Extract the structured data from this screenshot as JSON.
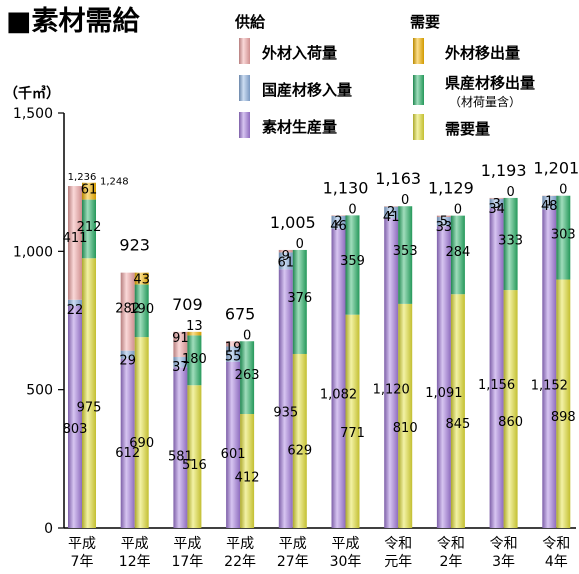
{
  "chart_data": {
    "type": "bar",
    "title": "■素材需給",
    "unit": "（千㎥）",
    "yticks": [
      "0",
      "500",
      "1,000",
      "1,500"
    ],
    "ylim": [
      0,
      1500
    ],
    "categories": [
      [
        "平成",
        "7年"
      ],
      [
        "平成",
        "12年"
      ],
      [
        "平成",
        "17年"
      ],
      [
        "平成",
        "22年"
      ],
      [
        "平成",
        "27年"
      ],
      [
        "平成",
        "30年"
      ],
      [
        "令和",
        "元年"
      ],
      [
        "令和",
        "2年"
      ],
      [
        "令和",
        "3年"
      ],
      [
        "令和",
        "4年"
      ]
    ],
    "legend": {
      "supply_title": "供給",
      "demand_title": "需要",
      "supply": [
        {
          "key": "import",
          "label": "外材入荷量"
        },
        {
          "key": "transfer_in",
          "label": "国産材移入量"
        },
        {
          "key": "production",
          "label": "素材生産量"
        }
      ],
      "demand": [
        {
          "key": "export",
          "label": "外材移出量"
        },
        {
          "key": "transfer_out",
          "label": "県産材移出量",
          "note": "（材荷量含）"
        },
        {
          "key": "demand",
          "label": "需要量"
        }
      ]
    },
    "supply": {
      "production": [
        803,
        612,
        581,
        601,
        935,
        1082,
        1120,
        1091,
        1156,
        1152
      ],
      "transfer_in": [
        22,
        29,
        37,
        55,
        61,
        46,
        41,
        33,
        34,
        48
      ],
      "import": [
        411,
        282,
        91,
        19,
        9,
        2,
        2,
        5,
        3,
        1
      ]
    },
    "demand": {
      "demand": [
        975,
        690,
        516,
        412,
        629,
        771,
        810,
        845,
        860,
        898
      ],
      "transfer_out": [
        212,
        190,
        180,
        263,
        376,
        359,
        353,
        284,
        333,
        303
      ],
      "export": [
        61,
        43,
        13,
        0,
        0,
        0,
        0,
        0,
        0,
        0
      ]
    },
    "labels": {
      "production": [
        "803",
        "612",
        "581",
        "601",
        "935",
        "1,082",
        "1,120",
        "1,091",
        "1,156",
        "1,152"
      ],
      "transfer_in": [
        "22",
        "29",
        "37",
        "55",
        "61",
        "46",
        "41",
        "33",
        "34",
        "48"
      ],
      "import": [
        "411",
        "282",
        "91",
        "19",
        "9",
        "2",
        "2",
        "5",
        "3",
        "1"
      ],
      "demand": [
        "975",
        "690",
        "516",
        "412",
        "629",
        "771",
        "810",
        "845",
        "860",
        "898"
      ],
      "transfer_out": [
        "212",
        "190",
        "180",
        "263",
        "376",
        "359",
        "353",
        "284",
        "333",
        "303"
      ],
      "export": [
        "61",
        "43",
        "13",
        "0",
        "0",
        "0",
        "0",
        "0",
        "0",
        "0"
      ],
      "supply_total": [
        "1,236",
        "923",
        "709",
        "675",
        "1,005",
        "1,130",
        "1,163",
        "1,129",
        "1,193",
        "1,201"
      ],
      "demand_total": [
        "1,248",
        "",
        "",
        "",
        "",
        "",
        "",
        "",
        "",
        ""
      ]
    },
    "colors": {
      "production": "#a77fe0",
      "transfer_in": "#8fb4e3",
      "import": "#f4a8a8",
      "demand": "#e5e13a",
      "transfer_out": "#2bb36a",
      "export": "#f7b500",
      "axis": "#000000"
    }
  }
}
